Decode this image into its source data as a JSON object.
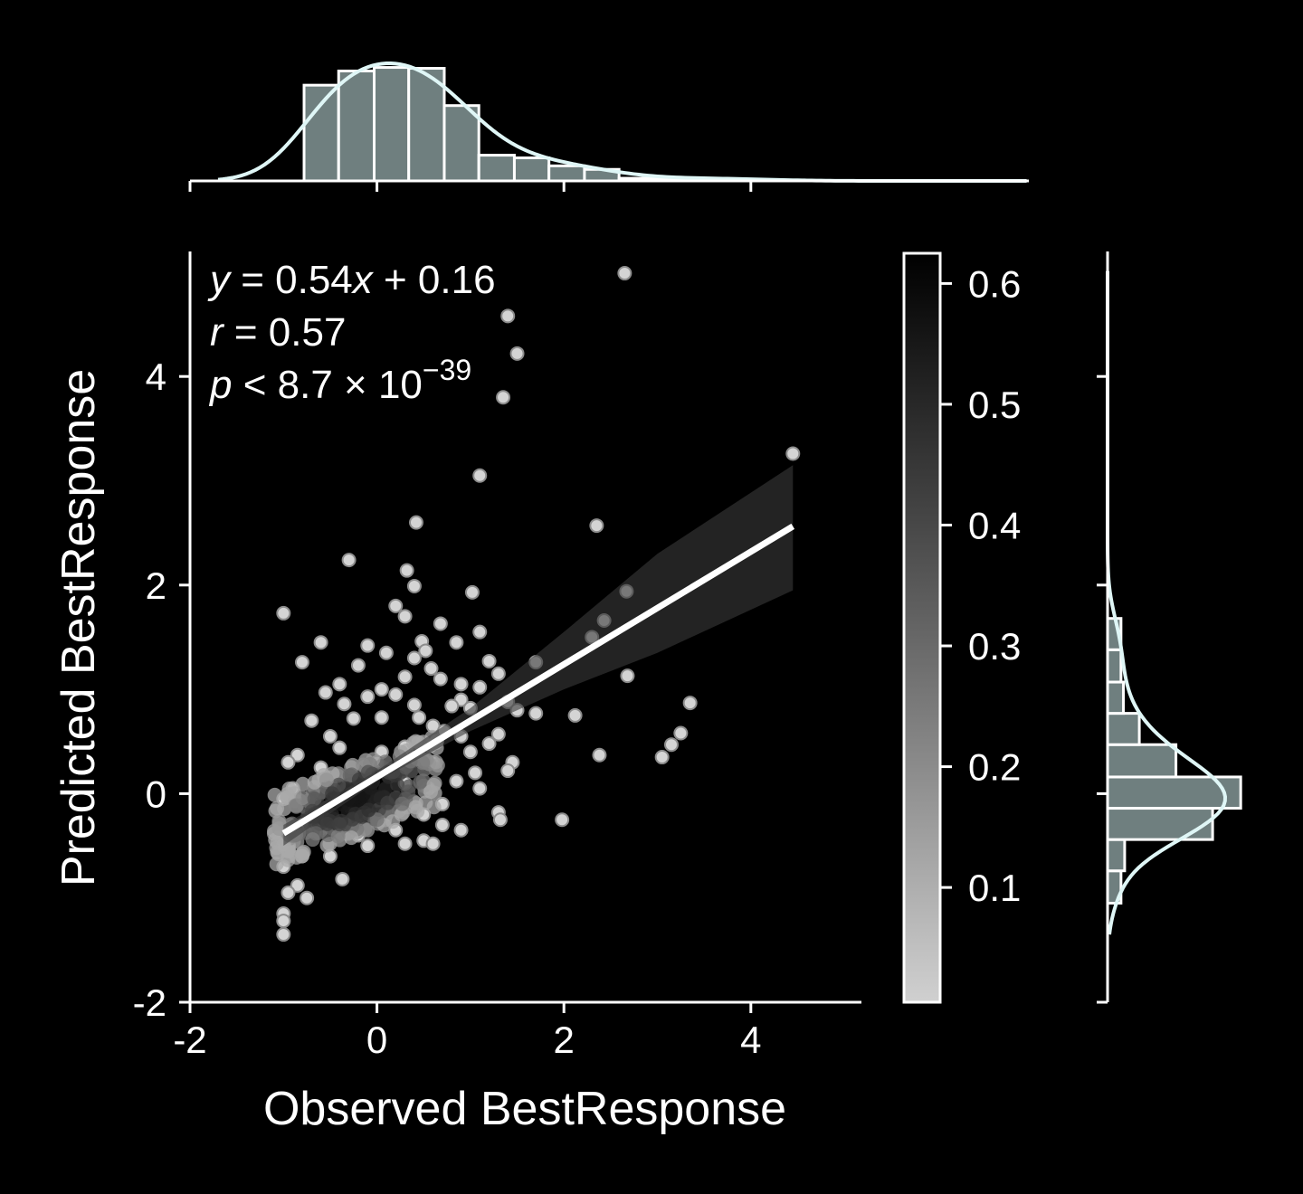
{
  "chart_data": {
    "type": "scatter",
    "xlabel": "Observed BestResponse",
    "ylabel": "Predicted BestResponse",
    "xlim": [
      -2,
      5.2
    ],
    "ylim": [
      -2,
      5.2
    ],
    "x_ticks": [
      "-2",
      "0",
      "2",
      "4"
    ],
    "y_ticks": [
      "-2",
      "0",
      "2",
      "4"
    ],
    "annotation": {
      "equation": {
        "y": "y",
        "eq": " = 0.54",
        "x": "x",
        "rest": " + 0.16"
      },
      "r": {
        "sym": "r",
        "val": " = 0.57"
      },
      "p": {
        "sym": "p",
        "val": " < 8.7 × 10",
        "exp": "−39"
      }
    },
    "regression": {
      "slope": 0.54,
      "intercept": 0.16,
      "x_range": [
        -1.0,
        4.45
      ]
    },
    "confidence_band": [
      {
        "x": -1.0,
        "lo": -0.5,
        "hi": -0.3
      },
      {
        "x": 0.0,
        "lo": 0.12,
        "hi": 0.22
      },
      {
        "x": 1.0,
        "lo": 0.6,
        "hi": 0.82
      },
      {
        "x": 2.0,
        "lo": 1.0,
        "hi": 1.55
      },
      {
        "x": 3.0,
        "lo": 1.35,
        "hi": 2.3
      },
      {
        "x": 4.45,
        "lo": 1.95,
        "hi": 3.15
      }
    ],
    "points": [
      [
        2.65,
        4.99
      ],
      [
        1.4,
        4.58
      ],
      [
        1.5,
        4.22
      ],
      [
        1.35,
        3.8
      ],
      [
        4.45,
        3.26
      ],
      [
        1.1,
        3.05
      ],
      [
        0.42,
        2.6
      ],
      [
        2.35,
        2.57
      ],
      [
        -0.3,
        2.24
      ],
      [
        0.32,
        2.14
      ],
      [
        0.4,
        1.99
      ],
      [
        1.02,
        1.93
      ],
      [
        2.67,
        1.94
      ],
      [
        0.2,
        1.8
      ],
      [
        -1.0,
        1.73
      ],
      [
        0.68,
        1.63
      ],
      [
        2.43,
        1.66
      ],
      [
        0.3,
        1.7
      ],
      [
        1.1,
        1.55
      ],
      [
        -0.6,
        1.45
      ],
      [
        0.48,
        1.46
      ],
      [
        0.85,
        1.45
      ],
      [
        0.52,
        1.37
      ],
      [
        -0.1,
        1.42
      ],
      [
        0.1,
        1.35
      ],
      [
        0.4,
        1.3
      ],
      [
        -0.8,
        1.26
      ],
      [
        1.2,
        1.27
      ],
      [
        1.7,
        1.26
      ],
      [
        0.58,
        1.2
      ],
      [
        2.3,
        1.5
      ],
      [
        2.68,
        1.13
      ],
      [
        1.3,
        1.15
      ],
      [
        -0.2,
        1.23
      ],
      [
        0.3,
        1.12
      ],
      [
        0.68,
        1.1
      ],
      [
        -0.4,
        1.05
      ],
      [
        0.9,
        1.05
      ],
      [
        1.1,
        1.02
      ],
      [
        0.05,
        1.0
      ],
      [
        -0.55,
        0.97
      ],
      [
        0.2,
        0.95
      ],
      [
        -0.1,
        0.93
      ],
      [
        0.9,
        0.9
      ],
      [
        1.4,
        0.88
      ],
      [
        3.35,
        0.87
      ],
      [
        0.4,
        0.85
      ],
      [
        -0.35,
        0.86
      ],
      [
        0.8,
        0.84
      ],
      [
        1.0,
        0.82
      ],
      [
        1.5,
        0.8
      ],
      [
        -0.7,
        0.7
      ],
      [
        0.45,
        0.73
      ],
      [
        1.7,
        0.77
      ],
      [
        2.12,
        0.75
      ],
      [
        0.05,
        0.73
      ],
      [
        -0.25,
        0.72
      ],
      [
        0.6,
        0.65
      ],
      [
        0.72,
        0.6
      ],
      [
        1.3,
        0.57
      ],
      [
        3.25,
        0.58
      ],
      [
        -0.5,
        0.55
      ],
      [
        0.9,
        0.55
      ],
      [
        3.15,
        0.47
      ],
      [
        1.2,
        0.48
      ],
      [
        0.3,
        0.45
      ],
      [
        3.05,
        0.35
      ],
      [
        2.38,
        0.37
      ],
      [
        1.0,
        0.4
      ],
      [
        -0.4,
        0.44
      ],
      [
        0.05,
        0.4
      ],
      [
        -0.85,
        0.37
      ],
      [
        -0.95,
        0.3
      ],
      [
        1.45,
        0.3
      ],
      [
        0.6,
        0.3
      ],
      [
        1.4,
        0.22
      ],
      [
        -0.6,
        0.25
      ],
      [
        1.05,
        0.2
      ],
      [
        0.85,
        0.12
      ],
      [
        1.1,
        0.05
      ],
      [
        -0.9,
        0.05
      ],
      [
        -1.0,
        -0.05
      ],
      [
        0.7,
        -0.1
      ],
      [
        1.3,
        -0.18
      ],
      [
        1.32,
        -0.25
      ],
      [
        1.98,
        -0.25
      ],
      [
        0.7,
        -0.3
      ],
      [
        0.5,
        -0.45
      ],
      [
        0.9,
        -0.35
      ],
      [
        0.3,
        -0.48
      ],
      [
        -0.1,
        -0.5
      ],
      [
        0.6,
        -0.48
      ],
      [
        -0.5,
        -0.6
      ],
      [
        -0.37,
        -0.82
      ],
      [
        -1.0,
        -0.5
      ],
      [
        -1.0,
        -0.7
      ],
      [
        -0.75,
        -1.0
      ],
      [
        -0.85,
        -0.88
      ],
      [
        -0.95,
        -0.95
      ],
      [
        -1.0,
        -1.15
      ],
      [
        -1.0,
        -1.22
      ],
      [
        -1.0,
        -1.35
      ],
      [
        -0.6,
        -0.35
      ],
      [
        -0.2,
        -0.4
      ],
      [
        0.2,
        -0.35
      ],
      [
        0.5,
        -0.2
      ],
      [
        0.0,
        0.3
      ],
      [
        -0.3,
        0.15
      ],
      [
        0.3,
        0.1
      ],
      [
        0.55,
        0.05
      ],
      [
        -0.7,
        -0.1
      ],
      [
        -0.5,
        0.1
      ],
      [
        0.1,
        -0.2
      ],
      [
        -0.8,
        -0.3
      ]
    ],
    "colorbar": {
      "ticks": [
        "0.1",
        "0.2",
        "0.3",
        "0.4",
        "0.5",
        "0.6"
      ],
      "tick_values": [
        0.1,
        0.2,
        0.3,
        0.4,
        0.5,
        0.6
      ],
      "range": [
        0.005,
        0.625
      ]
    },
    "x_hist": {
      "bin_edges": [
        -0.78,
        -0.41,
        -0.03,
        0.34,
        0.72,
        1.09,
        1.47,
        1.84,
        2.22,
        2.59,
        2.97,
        3.34,
        3.72,
        4.09,
        4.47
      ],
      "counts": [
        108,
        124,
        128,
        127,
        85,
        29,
        26,
        17,
        13,
        3,
        3,
        3,
        2,
        1
      ]
    },
    "y_hist": {
      "bin_edges": [
        -1.05,
        -0.74,
        -0.44,
        -0.14,
        0.16,
        0.47,
        0.77,
        1.07,
        1.38,
        1.68
      ],
      "counts": [
        11,
        14,
        86,
        109,
        56,
        26,
        13,
        11,
        11
      ]
    }
  }
}
